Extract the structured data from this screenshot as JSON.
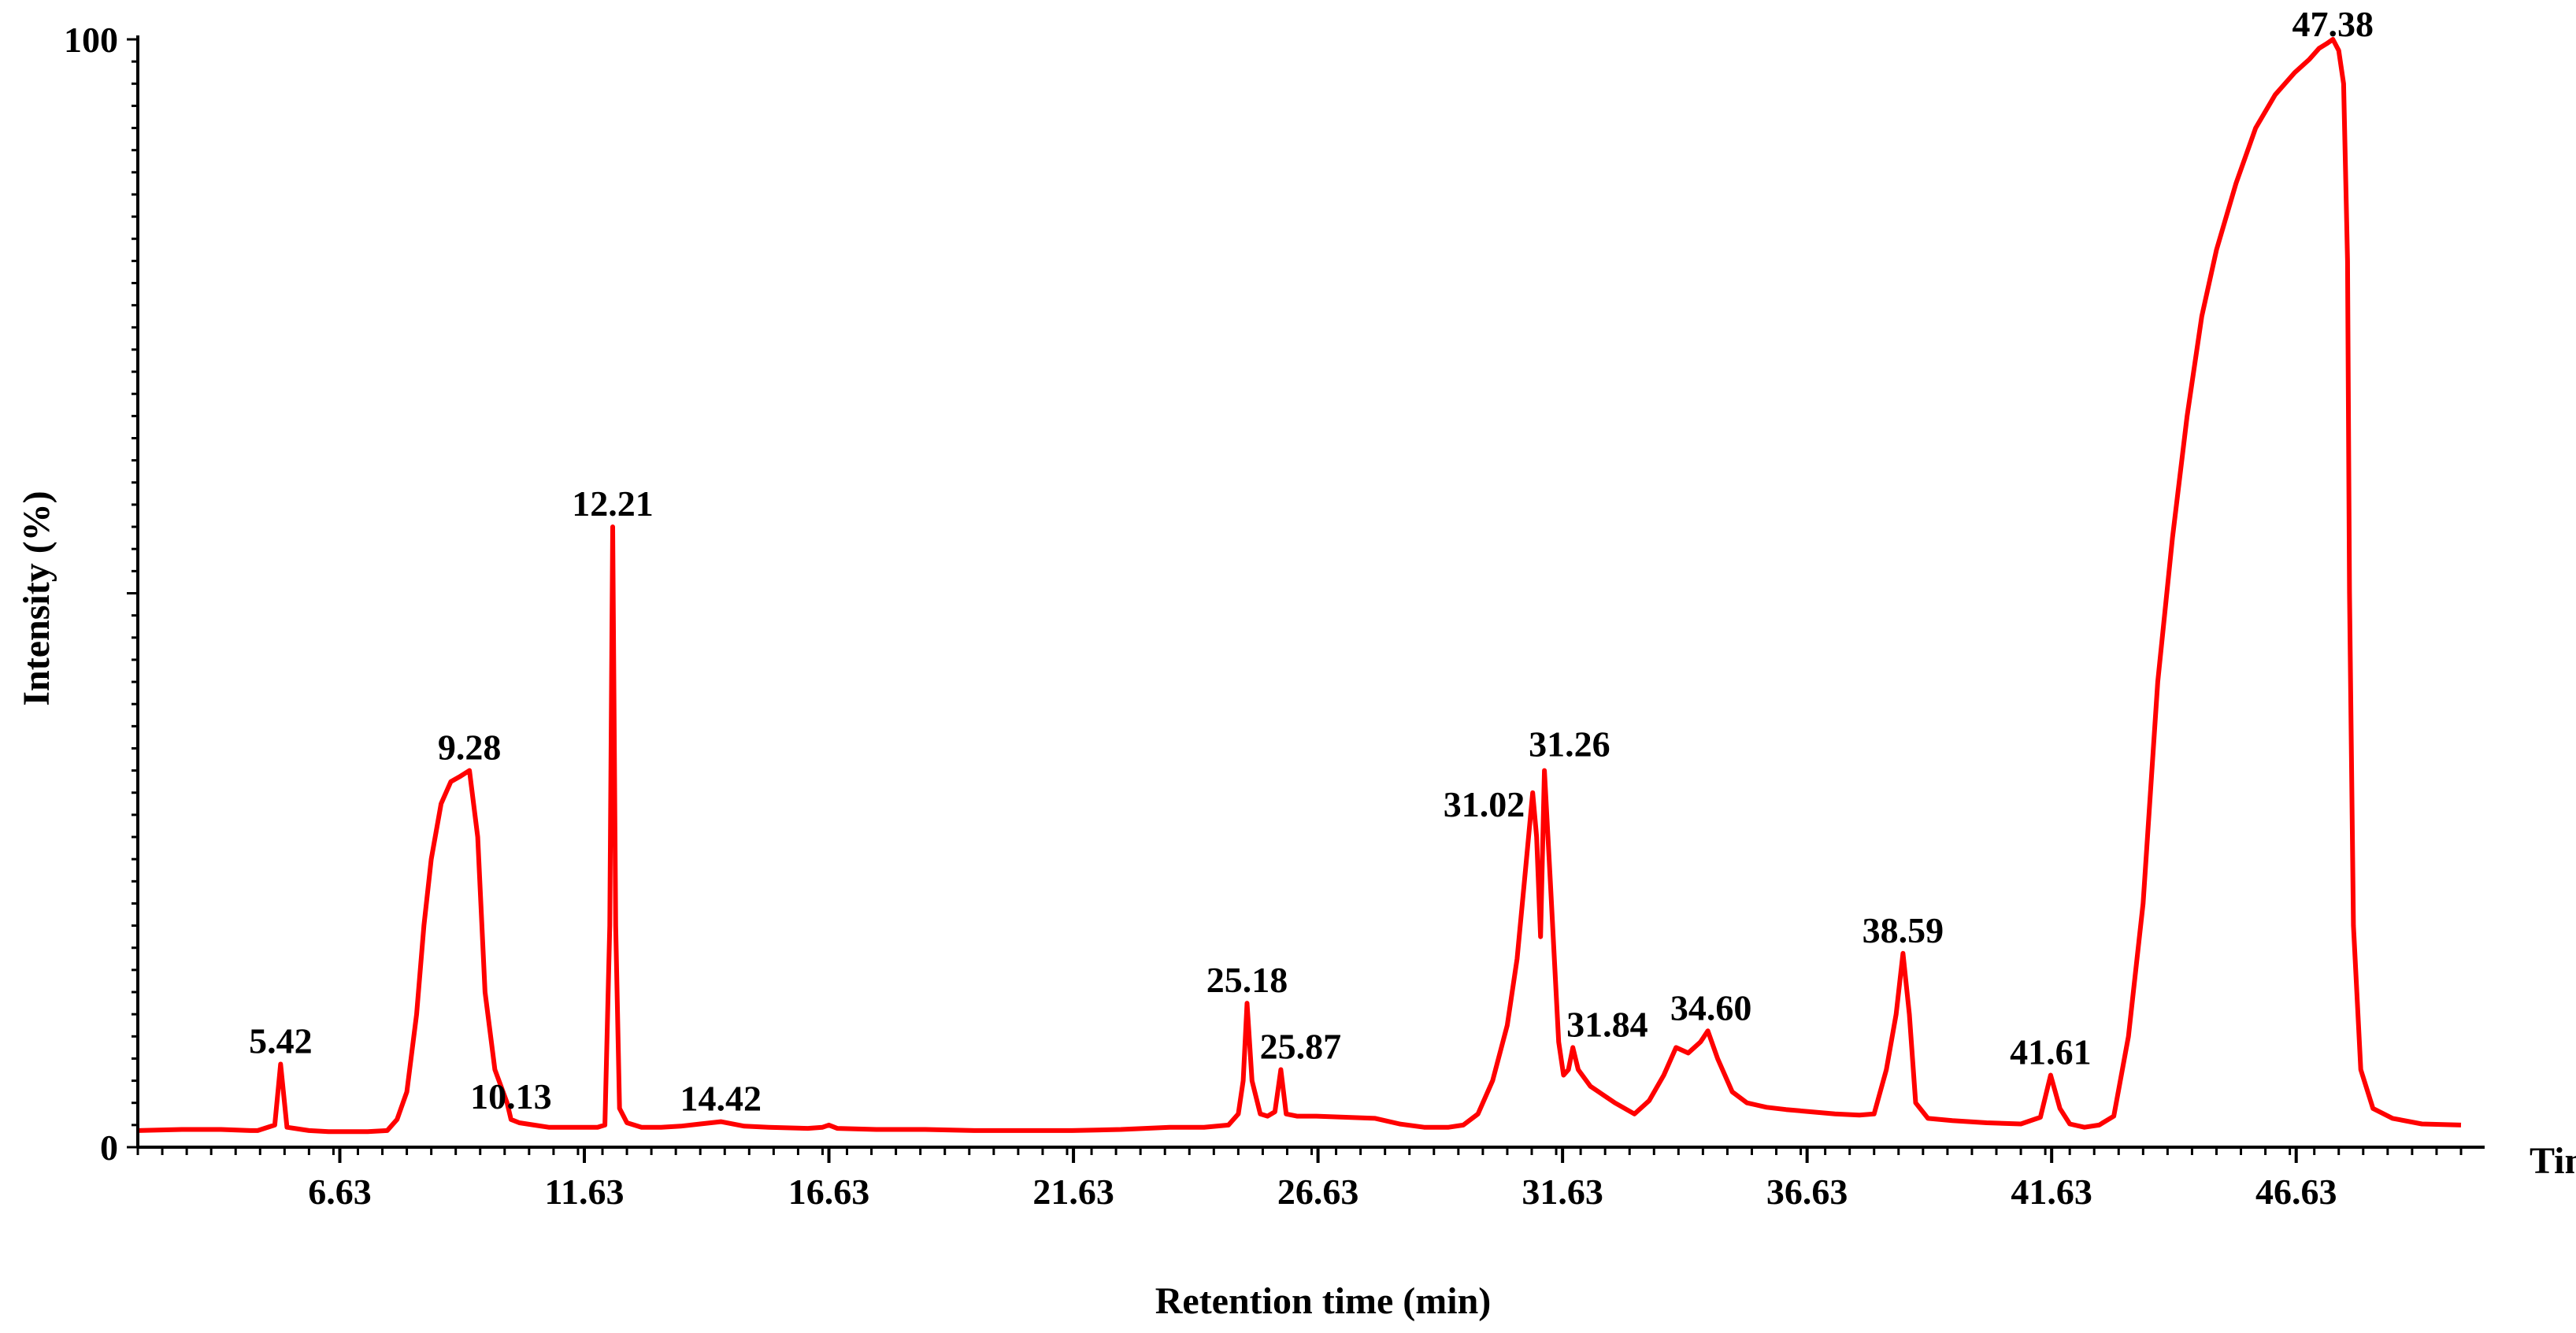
{
  "chart_data": {
    "type": "line",
    "title": "",
    "xlabel": "Retention time (min)",
    "ylabel": "Intensity (%)",
    "x_unit_label": "Time",
    "xlim": [
      2.5,
      50.0
    ],
    "ylim": [
      0,
      100
    ],
    "x_tick_labels": [
      "6.63",
      "11.63",
      "16.63",
      "21.63",
      "26.63",
      "31.63",
      "36.63",
      "41.63",
      "46.63"
    ],
    "x_ticks": [
      6.63,
      11.63,
      16.63,
      21.63,
      26.63,
      31.63,
      36.63,
      41.63,
      46.63
    ],
    "y_tick_labels": [
      "0",
      "100"
    ],
    "y_ticks": [
      0,
      100
    ],
    "grid": false,
    "line_color": "#ff0000",
    "series": [
      {
        "x": [
          2.5,
          3.4,
          4.2,
          4.8,
          4.95,
          5.3,
          5.42,
          5.55,
          6.0,
          6.4,
          6.6,
          7.2,
          7.6,
          7.8,
          8.0,
          8.2,
          8.35,
          8.5,
          8.7,
          8.9,
          9.1,
          9.28,
          9.45,
          9.6,
          9.8,
          10.05,
          10.13,
          10.3,
          10.6,
          10.9,
          11.2,
          11.5,
          11.7,
          11.9,
          12.05,
          12.15,
          12.21,
          12.27,
          12.35,
          12.5,
          12.8,
          13.2,
          13.6,
          14.0,
          14.42,
          14.9,
          15.4,
          16.2,
          16.5,
          16.63,
          16.8,
          17.6,
          18.6,
          19.6,
          20.6,
          21.6,
          22.6,
          23.6,
          24.3,
          24.8,
          25.0,
          25.1,
          25.18,
          25.28,
          25.45,
          25.6,
          25.75,
          25.87,
          25.98,
          26.2,
          26.6,
          27.2,
          27.8,
          28.3,
          28.8,
          29.3,
          29.6,
          29.9,
          30.2,
          30.5,
          30.7,
          30.85,
          31.02,
          31.1,
          31.18,
          31.26,
          31.38,
          31.55,
          31.65,
          31.75,
          31.84,
          31.95,
          32.2,
          32.7,
          33.1,
          33.4,
          33.7,
          33.95,
          34.2,
          34.45,
          34.6,
          34.8,
          35.1,
          35.4,
          35.6,
          35.8,
          36.2,
          36.7,
          37.2,
          37.7,
          38.0,
          38.25,
          38.45,
          38.59,
          38.72,
          38.85,
          39.1,
          39.6,
          40.3,
          41.0,
          41.4,
          41.61,
          41.8,
          42.0,
          42.3,
          42.6,
          42.9,
          43.2,
          43.5,
          43.8,
          44.1,
          44.4,
          44.7,
          45.0,
          45.4,
          45.8,
          46.2,
          46.6,
          46.9,
          47.1,
          47.25,
          47.38,
          47.5,
          47.6,
          47.68,
          47.72,
          47.8,
          47.95,
          48.2,
          48.6,
          49.2,
          50.0
        ],
        "y": [
          1.5,
          1.6,
          1.6,
          1.5,
          1.5,
          2.0,
          7.5,
          1.8,
          1.5,
          1.4,
          1.4,
          1.4,
          1.5,
          2.5,
          5.0,
          12.0,
          20.0,
          26.0,
          31.0,
          33.0,
          33.5,
          34.0,
          28.0,
          14.0,
          7.0,
          4.0,
          2.5,
          2.2,
          2.0,
          1.8,
          1.8,
          1.8,
          1.8,
          1.8,
          2.0,
          20.0,
          56.0,
          20.0,
          3.5,
          2.2,
          1.8,
          1.8,
          1.9,
          2.1,
          2.3,
          1.9,
          1.8,
          1.7,
          1.8,
          2.0,
          1.7,
          1.6,
          1.6,
          1.5,
          1.5,
          1.5,
          1.6,
          1.8,
          1.8,
          2.0,
          3.0,
          6.0,
          13.0,
          6.0,
          3.0,
          2.8,
          3.2,
          7.0,
          3.0,
          2.8,
          2.8,
          2.7,
          2.6,
          2.1,
          1.8,
          1.8,
          2.0,
          3.0,
          6.0,
          11.0,
          17.0,
          24.0,
          32.0,
          28.0,
          19.0,
          34.0,
          24.0,
          9.5,
          6.5,
          7.0,
          9.0,
          7.0,
          5.5,
          4.0,
          3.0,
          4.2,
          6.5,
          9.0,
          8.5,
          9.5,
          10.5,
          8.0,
          5.0,
          4.0,
          3.8,
          3.6,
          3.4,
          3.2,
          3.0,
          2.9,
          3.0,
          7.0,
          12.0,
          17.5,
          12.0,
          4.0,
          2.6,
          2.4,
          2.2,
          2.1,
          2.7,
          6.5,
          3.5,
          2.1,
          1.8,
          2.0,
          2.8,
          10.0,
          22.0,
          42.0,
          55.0,
          66.0,
          75.0,
          81.0,
          87.0,
          92.0,
          95.0,
          97.0,
          98.2,
          99.2,
          99.6,
          100.0,
          99.0,
          96.0,
          80.0,
          50.0,
          20.0,
          7.0,
          3.5,
          2.6,
          2.1,
          2.0
        ]
      }
    ],
    "peak_labels": [
      {
        "text": "5.42",
        "x": 5.42,
        "y": 7.5
      },
      {
        "text": "9.28",
        "x": 9.28,
        "y": 34.0
      },
      {
        "text": "10.13",
        "x": 10.13,
        "y": 2.5
      },
      {
        "text": "12.21",
        "x": 12.21,
        "y": 56.0
      },
      {
        "text": "14.42",
        "x": 14.42,
        "y": 2.3
      },
      {
        "text": "25.18",
        "x": 25.18,
        "y": 13.0
      },
      {
        "text": "25.87",
        "x": 25.87,
        "y": 7.0
      },
      {
        "text": "31.02",
        "x": 31.02,
        "y": 32.0
      },
      {
        "text": "31.26",
        "x": 31.26,
        "y": 34.0
      },
      {
        "text": "31.84",
        "x": 31.84,
        "y": 9.0
      },
      {
        "text": "34.60",
        "x": 34.6,
        "y": 10.5
      },
      {
        "text": "38.59",
        "x": 38.59,
        "y": 17.5
      },
      {
        "text": "41.61",
        "x": 41.61,
        "y": 6.5
      },
      {
        "text": "47.38",
        "x": 47.38,
        "y": 100.0
      }
    ]
  }
}
